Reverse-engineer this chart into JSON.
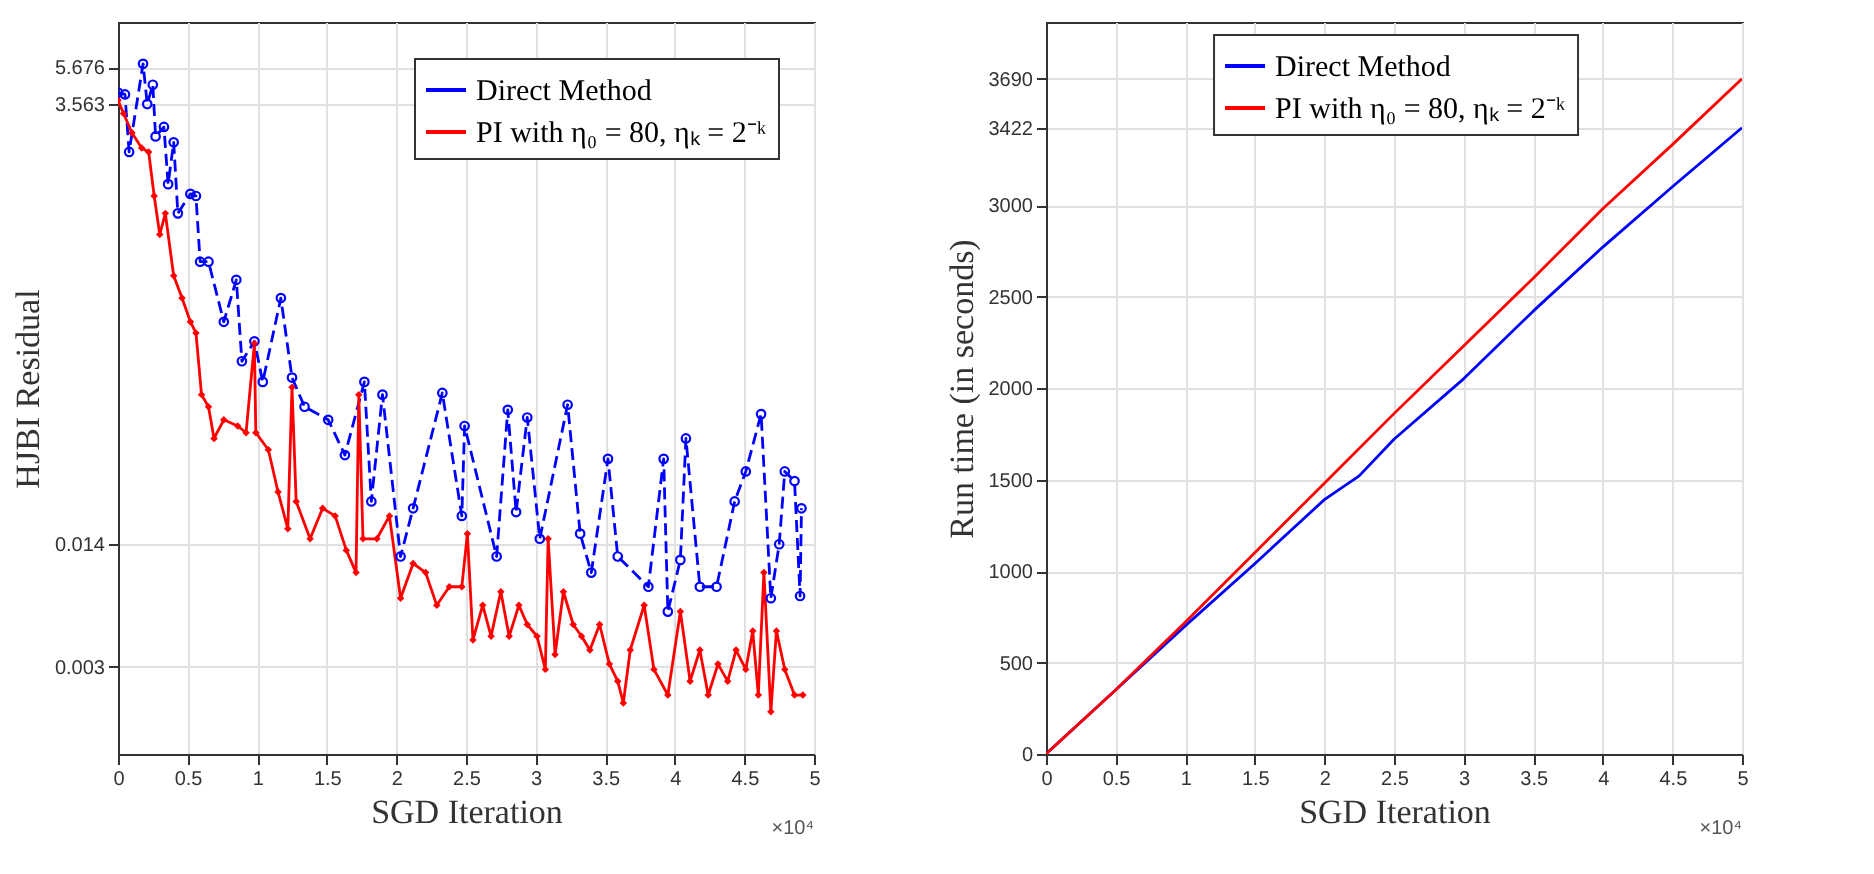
{
  "chart_data": [
    {
      "type": "line",
      "xlabel": "SGD Iteration",
      "ylabel": "HJBI Residual",
      "log": "y",
      "grid": true,
      "legend": "top right",
      "xlim": [
        0,
        5
      ],
      "xticks": [
        0,
        0.5,
        1,
        1.5,
        2,
        2.5,
        3,
        3.5,
        4,
        4.5,
        5
      ],
      "ylim": [
        0.001,
        10
      ],
      "yticks": [
        0.003,
        0.014,
        3.563,
        5.676
      ],
      "annotations": [
        "×10⁴"
      ],
      "series": [
        {
          "name": "Direct Method",
          "color": "#0000ff",
          "marker": "circle",
          "line_style": "dashed",
          "x": [
            0,
            0.05,
            0.08,
            0.18,
            0.21,
            0.25,
            0.27,
            0.33,
            0.36,
            0.4,
            0.43,
            0.52,
            0.56,
            0.59,
            0.65,
            0.76,
            0.85,
            0.89,
            0.98,
            1.04,
            1.17,
            1.25,
            1.34,
            1.51,
            1.63,
            1.77,
            1.82,
            1.9,
            2.03,
            2.12,
            2.33,
            2.47,
            2.49,
            2.72,
            2.8,
            2.86,
            2.94,
            3.03,
            3.23,
            3.32,
            3.4,
            3.52,
            3.59,
            3.81,
            3.92,
            3.95,
            4.04,
            4.08,
            4.18,
            4.3,
            4.43,
            4.51,
            4.62,
            4.69,
            4.75,
            4.79,
            4.86,
            4.9,
            4.91
          ],
          "values": [
            4.12,
            4.02,
            1.95,
            5.91,
            3.56,
            4.54,
            2.37,
            2.67,
            1.3,
            2.2,
            0.9,
            1.15,
            1.12,
            0.49,
            0.49,
            0.23,
            0.39,
            0.14,
            0.18,
            0.108,
            0.31,
            0.114,
            0.079,
            0.067,
            0.043,
            0.108,
            0.024,
            0.092,
            0.012,
            0.022,
            0.094,
            0.02,
            0.062,
            0.012,
            0.076,
            0.021,
            0.069,
            0.015,
            0.081,
            0.016,
            0.0098,
            0.041,
            0.012,
            0.0082,
            0.041,
            0.006,
            0.0115,
            0.053,
            0.0082,
            0.0082,
            0.024,
            0.035,
            0.072,
            0.0071,
            0.014,
            0.035,
            0.031,
            0.0073,
            0.022
          ]
        },
        {
          "name": "PI with η₀ = 80, ηₖ = 2⁻ᵏ",
          "color": "#ff0000",
          "marker": "diamond",
          "line_style": "solid",
          "x": [
            0,
            0.04,
            0.1,
            0.17,
            0.22,
            0.26,
            0.3,
            0.34,
            0.4,
            0.46,
            0.52,
            0.56,
            0.6,
            0.65,
            0.69,
            0.76,
            0.86,
            0.92,
            0.98,
            0.99,
            1.08,
            1.15,
            1.22,
            1.25,
            1.28,
            1.38,
            1.47,
            1.56,
            1.64,
            1.71,
            1.73,
            1.76,
            1.86,
            1.95,
            2.03,
            2.12,
            2.21,
            2.29,
            2.38,
            2.47,
            2.51,
            2.55,
            2.62,
            2.68,
            2.75,
            2.81,
            2.88,
            2.94,
            3.01,
            3.07,
            3.09,
            3.14,
            3.2,
            3.27,
            3.33,
            3.39,
            3.46,
            3.53,
            3.59,
            3.63,
            3.68,
            3.78,
            3.85,
            3.95,
            4.04,
            4.11,
            4.18,
            4.24,
            4.31,
            4.38,
            4.44,
            4.51,
            4.56,
            4.6,
            4.64,
            4.69,
            4.73,
            4.79,
            4.86,
            4.92
          ],
          "values": [
            3.74,
            3.16,
            2.48,
            2.05,
            1.95,
            1.12,
            0.69,
            0.9,
            0.41,
            0.31,
            0.23,
            0.2,
            0.092,
            0.079,
            0.053,
            0.067,
            0.062,
            0.057,
            0.175,
            0.057,
            0.046,
            0.027,
            0.017,
            0.101,
            0.024,
            0.015,
            0.022,
            0.02,
            0.013,
            0.0098,
            0.092,
            0.015,
            0.015,
            0.02,
            0.0071,
            0.011,
            0.0098,
            0.0065,
            0.0082,
            0.0082,
            0.016,
            0.0042,
            0.0065,
            0.0044,
            0.0077,
            0.0044,
            0.0065,
            0.0051,
            0.0044,
            0.0029,
            0.015,
            0.0035,
            0.0077,
            0.0051,
            0.0044,
            0.0037,
            0.0051,
            0.0031,
            0.0025,
            0.0019,
            0.0037,
            0.0065,
            0.0029,
            0.0021,
            0.006,
            0.0025,
            0.0037,
            0.0021,
            0.0031,
            0.0025,
            0.0037,
            0.0029,
            0.0047,
            0.0021,
            0.0098,
            0.0017,
            0.0047,
            0.0029,
            0.0021,
            0.0021
          ]
        }
      ]
    },
    {
      "type": "line",
      "xlabel": "SGD Iteration",
      "ylabel": "Run time (in seconds)",
      "grid": true,
      "legend": "top",
      "xlim": [
        0,
        5
      ],
      "xticks": [
        0,
        0.5,
        1,
        1.5,
        2,
        2.5,
        3,
        3.5,
        4,
        4.5,
        5
      ],
      "ylim": [
        0,
        4000
      ],
      "yticks": [
        0,
        500,
        1000,
        1500,
        2000,
        2500,
        3000,
        3422,
        3690
      ],
      "annotations": [
        "×10⁴"
      ],
      "series": [
        {
          "name": "Direct Method",
          "color": "#0000ff",
          "x": [
            0,
            0.5,
            1,
            1.5,
            2,
            2.25,
            2.5,
            3,
            3.5,
            4,
            4.5,
            5
          ],
          "values": [
            0,
            350,
            700,
            1040,
            1390,
            1520,
            1720,
            2050,
            2420,
            2770,
            3100,
            3422
          ]
        },
        {
          "name": "PI with η₀ = 80, ηₖ = 2⁻ᵏ",
          "color": "#ff0000",
          "x": [
            0,
            0.5,
            1,
            1.5,
            2,
            2.5,
            3,
            3.5,
            4,
            4.5,
            5
          ],
          "values": [
            0,
            350,
            720,
            1100,
            1480,
            1860,
            2230,
            2600,
            2980,
            3330,
            3690
          ]
        }
      ]
    }
  ]
}
